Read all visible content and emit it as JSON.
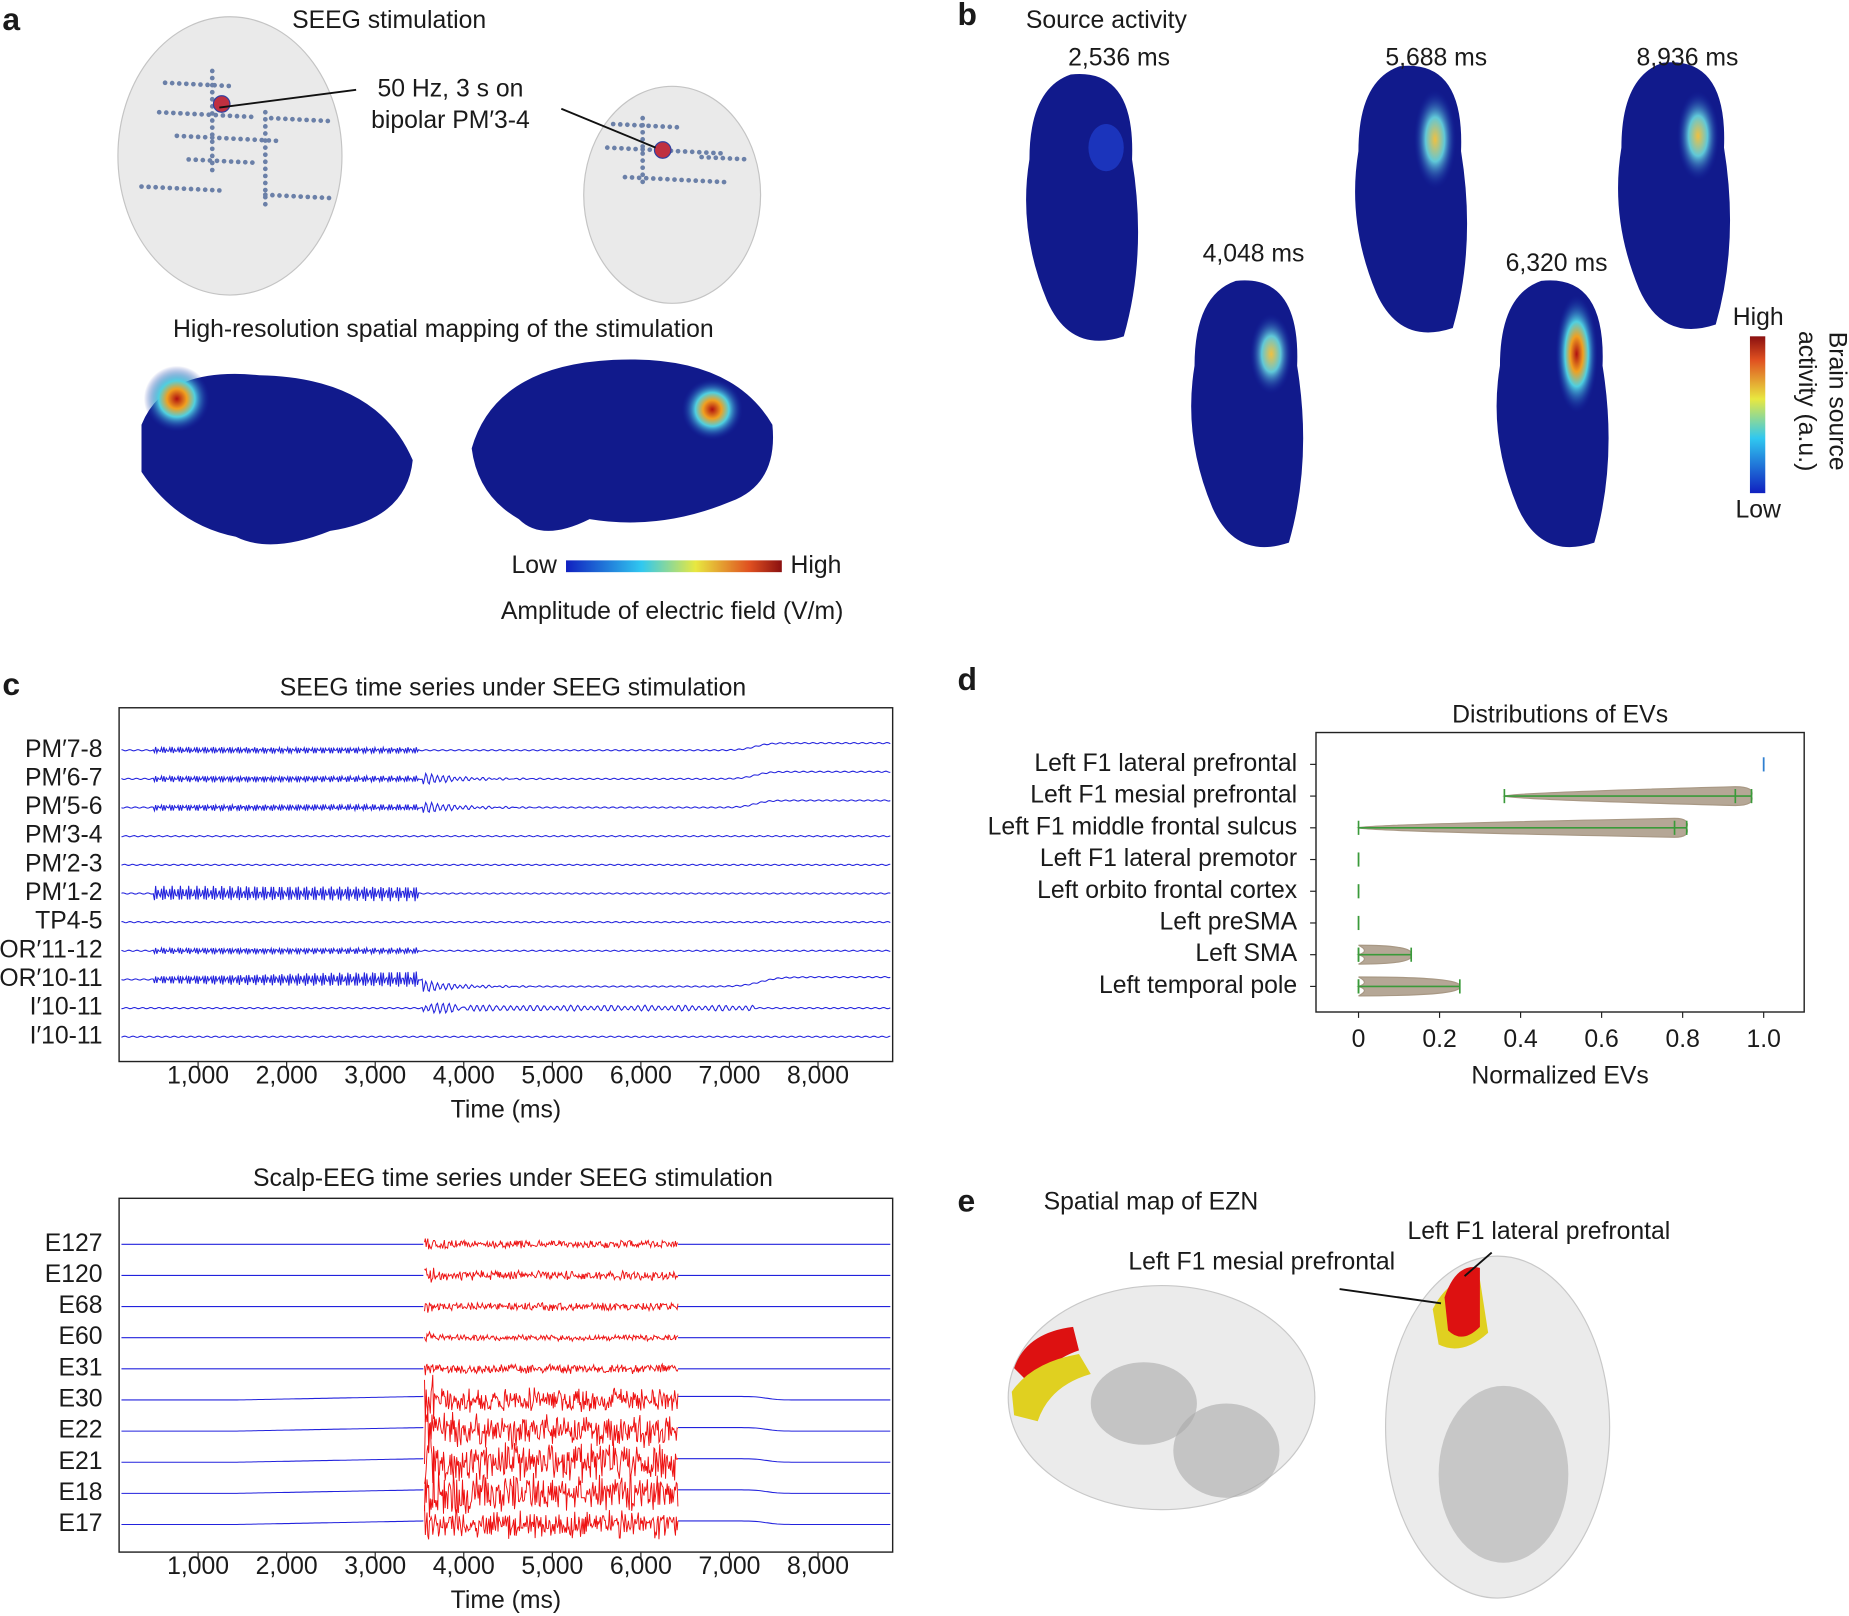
{
  "panels": {
    "a": {
      "label": "a",
      "title": "SEEG stimulation",
      "annotation": [
        "50 Hz, 3 s on",
        "bipolar PM′3-4"
      ],
      "mapping_title": "High-resolution spatial mapping of the stimulation",
      "colorbar_low": "Low",
      "colorbar_high": "High",
      "colorbar_label": "Amplitude of electric field (V/m)"
    },
    "b": {
      "label": "b",
      "title": "Source activity",
      "times": [
        "2,536 ms",
        "4,048 ms",
        "5,688 ms",
        "6,320 ms",
        "8,936 ms"
      ],
      "colorbar_high": "High",
      "colorbar_low": "Low",
      "colorbar_label": [
        "Brain source",
        "activity (a.u.)"
      ]
    },
    "c": {
      "label": "c"
    },
    "d": {
      "label": "d"
    },
    "e": {
      "label": "e",
      "title": "Spatial map of EZN",
      "annotations": [
        "Left F1 lateral prefrontal",
        "Left F1 mesial prefrontal"
      ]
    }
  },
  "chart_data": [
    {
      "type": "timeseries",
      "title": "SEEG time series under SEEG stimulation",
      "x_label": "Time (ms)",
      "categories": [
        "PM′7-8",
        "PM′6-7",
        "PM′5-6",
        "PM′3-4",
        "PM′2-3",
        "PM′1-2",
        "TP4-5",
        "OR′11-12",
        "OR′10-11",
        "I′10-11",
        "I′10-11"
      ],
      "xlim": [
        108,
        8843
      ],
      "xticks": [
        {
          "value": 1000,
          "label": "1,000"
        },
        {
          "value": 2000,
          "label": "2,000"
        },
        {
          "value": 3000,
          "label": "3,000"
        },
        {
          "value": 4000,
          "label": "4,000"
        },
        {
          "value": 5000,
          "label": "5,000"
        },
        {
          "value": 6000,
          "label": "6,000"
        },
        {
          "value": 7000,
          "label": "7,000"
        },
        {
          "value": 8000,
          "label": "8,000"
        }
      ],
      "color": "#2222dd"
    },
    {
      "type": "timeseries",
      "title": "Scalp-EEG time series under SEEG stimulation",
      "x_label": "Time (ms)",
      "categories": [
        "E127",
        "E120",
        "E68",
        "E60",
        "E31",
        "E30",
        "E22",
        "E21",
        "E18",
        "E17"
      ],
      "xlim": [
        108,
        8843
      ],
      "xticks": [
        {
          "value": 1000,
          "label": "1,000"
        },
        {
          "value": 2000,
          "label": "2,000"
        },
        {
          "value": 3000,
          "label": "3,000"
        },
        {
          "value": 4000,
          "label": "4,000"
        },
        {
          "value": 5000,
          "label": "5,000"
        },
        {
          "value": 6000,
          "label": "6,000"
        },
        {
          "value": 7000,
          "label": "7,000"
        },
        {
          "value": 8000,
          "label": "8,000"
        }
      ],
      "color": "#2222dd",
      "stim_color": "#ee1111"
    },
    {
      "type": "violin",
      "title": "Distributions of EVs",
      "x_label": "Normalized EVs",
      "categories": [
        "Left F1 lateral prefrontal",
        "Left F1 mesial prefrontal",
        "Left F1 middle frontal sulcus",
        "Left F1 lateral premotor",
        "Left orbito frontal cortex",
        "Left preSMA",
        "Left SMA",
        "Left temporal pole"
      ],
      "mins": [
        1,
        0.36,
        0,
        0,
        0,
        0,
        0,
        0
      ],
      "medians": [
        1,
        0.93,
        0.78,
        0,
        0,
        0,
        0,
        0
      ],
      "maxs": [
        1,
        0.97,
        0.81,
        0,
        0,
        0,
        0.13,
        0.25
      ],
      "xlim": [
        -0.105,
        1.1
      ],
      "xticks": [
        0,
        0.2,
        0.4,
        0.6,
        0.8,
        {
          "value": 1,
          "label": "1.0"
        }
      ],
      "color": "#a89884",
      "line_color": "#3a9a3a",
      "point_color": "#2f7fd0"
    }
  ]
}
